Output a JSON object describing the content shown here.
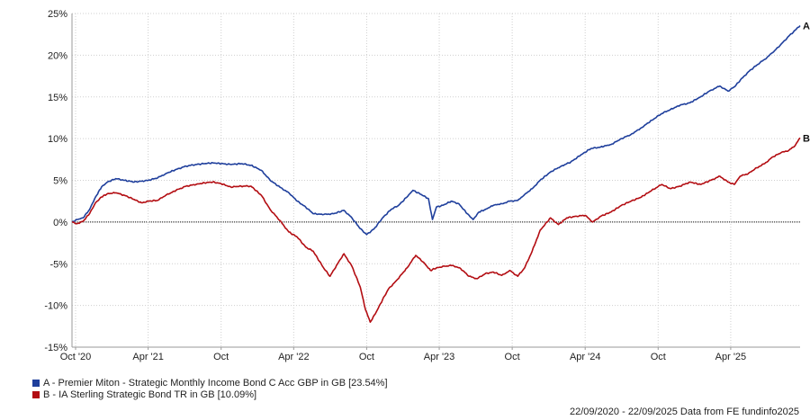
{
  "chart_data": {
    "type": "line",
    "y_unit": "%",
    "ylim": [
      -15,
      25
    ],
    "y_ticks": [
      25,
      20,
      15,
      10,
      5,
      0,
      -5,
      -10,
      -15
    ],
    "y_tick_labels": [
      "25%",
      "20%",
      "15%",
      "10%",
      "5%",
      "0%",
      "-5%",
      "-10%",
      "-15%"
    ],
    "x_range": [
      "2020-09-22",
      "2025-09-22"
    ],
    "x_ticks": [
      {
        "label": "Oct '20",
        "date": "2020-10-01"
      },
      {
        "label": "Apr '21",
        "date": "2021-04-01"
      },
      {
        "label": "Oct",
        "date": "2021-10-01"
      },
      {
        "label": "Apr '22",
        "date": "2022-04-01"
      },
      {
        "label": "Oct",
        "date": "2022-10-01"
      },
      {
        "label": "Apr '23",
        "date": "2023-04-01"
      },
      {
        "label": "Oct",
        "date": "2023-10-01"
      },
      {
        "label": "Apr '24",
        "date": "2024-04-01"
      },
      {
        "label": "Oct",
        "date": "2024-10-01"
      },
      {
        "label": "Apr '25",
        "date": "2025-04-01"
      }
    ],
    "grid": true,
    "zero_line": "dotted",
    "series": [
      {
        "name": "A - Premier Miton - Strategic Monthly Income Bond C Acc GBP in GB [23.54%]",
        "end_label": "A",
        "color": "#1f3f9c",
        "points": [
          [
            "2020-09-22",
            0.0
          ],
          [
            "2020-10-05",
            0.3
          ],
          [
            "2020-10-20",
            0.5
          ],
          [
            "2020-11-05",
            1.5
          ],
          [
            "2020-11-20",
            3.0
          ],
          [
            "2020-12-05",
            4.2
          ],
          [
            "2020-12-20",
            4.8
          ],
          [
            "2021-01-10",
            5.2
          ],
          [
            "2021-02-01",
            5.0
          ],
          [
            "2021-02-25",
            4.8
          ],
          [
            "2021-03-15",
            4.9
          ],
          [
            "2021-04-01",
            5.0
          ],
          [
            "2021-04-25",
            5.3
          ],
          [
            "2021-05-15",
            5.8
          ],
          [
            "2021-06-10",
            6.3
          ],
          [
            "2021-07-05",
            6.7
          ],
          [
            "2021-07-30",
            6.9
          ],
          [
            "2021-08-20",
            7.0
          ],
          [
            "2021-09-10",
            7.1
          ],
          [
            "2021-10-01",
            7.0
          ],
          [
            "2021-10-25",
            6.9
          ],
          [
            "2021-11-20",
            7.0
          ],
          [
            "2021-12-15",
            6.8
          ],
          [
            "2022-01-10",
            6.2
          ],
          [
            "2022-02-01",
            5.0
          ],
          [
            "2022-02-25",
            4.2
          ],
          [
            "2022-03-20",
            3.5
          ],
          [
            "2022-04-10",
            2.5
          ],
          [
            "2022-05-01",
            1.8
          ],
          [
            "2022-05-20",
            1.0
          ],
          [
            "2022-06-15",
            0.9
          ],
          [
            "2022-07-10",
            1.0
          ],
          [
            "2022-08-05",
            1.4
          ],
          [
            "2022-08-25",
            0.5
          ],
          [
            "2022-09-15",
            -0.8
          ],
          [
            "2022-10-01",
            -1.5
          ],
          [
            "2022-10-20",
            -0.8
          ],
          [
            "2022-11-10",
            0.5
          ],
          [
            "2022-12-01",
            1.5
          ],
          [
            "2022-12-20",
            2.0
          ],
          [
            "2023-01-10",
            3.0
          ],
          [
            "2023-01-25",
            3.8
          ],
          [
            "2023-02-15",
            3.3
          ],
          [
            "2023-03-05",
            2.8
          ],
          [
            "2023-03-15",
            0.3
          ],
          [
            "2023-03-25",
            1.8
          ],
          [
            "2023-04-10",
            2.0
          ],
          [
            "2023-05-01",
            2.5
          ],
          [
            "2023-05-20",
            2.2
          ],
          [
            "2023-06-10",
            1.0
          ],
          [
            "2023-06-25",
            0.3
          ],
          [
            "2023-07-10",
            1.2
          ],
          [
            "2023-07-25",
            1.5
          ],
          [
            "2023-08-15",
            2.0
          ],
          [
            "2023-09-05",
            2.2
          ],
          [
            "2023-09-25",
            2.5
          ],
          [
            "2023-10-15",
            2.6
          ],
          [
            "2023-11-01",
            3.3
          ],
          [
            "2023-11-20",
            4.0
          ],
          [
            "2023-12-10",
            5.0
          ],
          [
            "2024-01-05",
            6.0
          ],
          [
            "2024-02-01",
            6.7
          ],
          [
            "2024-02-25",
            7.2
          ],
          [
            "2024-03-20",
            8.0
          ],
          [
            "2024-04-15",
            8.8
          ],
          [
            "2024-05-10",
            9.0
          ],
          [
            "2024-06-05",
            9.3
          ],
          [
            "2024-07-01",
            10.0
          ],
          [
            "2024-07-25",
            10.5
          ],
          [
            "2024-08-20",
            11.3
          ],
          [
            "2024-09-15",
            12.2
          ],
          [
            "2024-10-10",
            13.0
          ],
          [
            "2024-11-01",
            13.5
          ],
          [
            "2024-11-25",
            14.0
          ],
          [
            "2024-12-20",
            14.3
          ],
          [
            "2025-01-15",
            15.0
          ],
          [
            "2025-02-10",
            15.8
          ],
          [
            "2025-03-05",
            16.3
          ],
          [
            "2025-03-25",
            15.7
          ],
          [
            "2025-04-10",
            16.2
          ],
          [
            "2025-04-25",
            17.0
          ],
          [
            "2025-05-15",
            18.0
          ],
          [
            "2025-06-05",
            18.8
          ],
          [
            "2025-06-25",
            19.5
          ],
          [
            "2025-07-15",
            20.3
          ],
          [
            "2025-08-05",
            21.3
          ],
          [
            "2025-08-25",
            22.3
          ],
          [
            "2025-09-10",
            23.0
          ],
          [
            "2025-09-22",
            23.54
          ]
        ]
      },
      {
        "name": "B - IA Sterling Strategic Bond TR in GB [10.09%]",
        "end_label": "B",
        "color": "#b30d12",
        "points": [
          [
            "2020-09-22",
            0.0
          ],
          [
            "2020-10-05",
            -0.2
          ],
          [
            "2020-10-20",
            0.1
          ],
          [
            "2020-11-05",
            1.0
          ],
          [
            "2020-11-20",
            2.3
          ],
          [
            "2020-12-05",
            3.0
          ],
          [
            "2020-12-20",
            3.4
          ],
          [
            "2021-01-10",
            3.5
          ],
          [
            "2021-02-01",
            3.2
          ],
          [
            "2021-02-25",
            2.7
          ],
          [
            "2021-03-15",
            2.3
          ],
          [
            "2021-04-01",
            2.5
          ],
          [
            "2021-04-25",
            2.6
          ],
          [
            "2021-05-15",
            3.2
          ],
          [
            "2021-06-10",
            3.8
          ],
          [
            "2021-07-05",
            4.3
          ],
          [
            "2021-07-30",
            4.5
          ],
          [
            "2021-08-20",
            4.7
          ],
          [
            "2021-09-10",
            4.8
          ],
          [
            "2021-10-01",
            4.6
          ],
          [
            "2021-10-25",
            4.2
          ],
          [
            "2021-11-20",
            4.3
          ],
          [
            "2021-12-15",
            4.3
          ],
          [
            "2022-01-10",
            3.2
          ],
          [
            "2022-02-01",
            1.5
          ],
          [
            "2022-02-25",
            0.2
          ],
          [
            "2022-03-20",
            -1.2
          ],
          [
            "2022-04-10",
            -1.8
          ],
          [
            "2022-05-01",
            -3.0
          ],
          [
            "2022-05-20",
            -3.5
          ],
          [
            "2022-06-15",
            -5.5
          ],
          [
            "2022-07-01",
            -6.5
          ],
          [
            "2022-07-20",
            -5.0
          ],
          [
            "2022-08-05",
            -3.8
          ],
          [
            "2022-08-25",
            -5.3
          ],
          [
            "2022-09-15",
            -7.8
          ],
          [
            "2022-09-28",
            -10.5
          ],
          [
            "2022-10-10",
            -12.0
          ],
          [
            "2022-10-25",
            -10.8
          ],
          [
            "2022-11-10",
            -9.3
          ],
          [
            "2022-11-25",
            -8.0
          ],
          [
            "2022-12-15",
            -7.0
          ],
          [
            "2023-01-10",
            -5.5
          ],
          [
            "2023-02-01",
            -4.0
          ],
          [
            "2023-02-20",
            -4.8
          ],
          [
            "2023-03-10",
            -5.8
          ],
          [
            "2023-03-25",
            -5.5
          ],
          [
            "2023-04-15",
            -5.3
          ],
          [
            "2023-05-05",
            -5.2
          ],
          [
            "2023-05-25",
            -5.6
          ],
          [
            "2023-06-15",
            -6.5
          ],
          [
            "2023-07-05",
            -6.8
          ],
          [
            "2023-07-25",
            -6.2
          ],
          [
            "2023-08-15",
            -6.0
          ],
          [
            "2023-09-05",
            -6.4
          ],
          [
            "2023-09-25",
            -5.8
          ],
          [
            "2023-10-15",
            -6.5
          ],
          [
            "2023-11-01",
            -5.5
          ],
          [
            "2023-11-20",
            -3.5
          ],
          [
            "2023-12-10",
            -1.0
          ],
          [
            "2024-01-05",
            0.5
          ],
          [
            "2024-01-25",
            -0.3
          ],
          [
            "2024-02-15",
            0.5
          ],
          [
            "2024-03-10",
            0.7
          ],
          [
            "2024-04-01",
            0.8
          ],
          [
            "2024-04-20",
            0.0
          ],
          [
            "2024-05-10",
            0.7
          ],
          [
            "2024-06-05",
            1.2
          ],
          [
            "2024-07-01",
            2.0
          ],
          [
            "2024-07-25",
            2.5
          ],
          [
            "2024-08-20",
            3.0
          ],
          [
            "2024-09-15",
            3.8
          ],
          [
            "2024-10-10",
            4.5
          ],
          [
            "2024-11-01",
            4.0
          ],
          [
            "2024-11-25",
            4.3
          ],
          [
            "2024-12-20",
            4.8
          ],
          [
            "2025-01-15",
            4.5
          ],
          [
            "2025-02-10",
            5.0
          ],
          [
            "2025-03-05",
            5.5
          ],
          [
            "2025-03-25",
            4.8
          ],
          [
            "2025-04-10",
            4.5
          ],
          [
            "2025-04-25",
            5.5
          ],
          [
            "2025-05-15",
            5.8
          ],
          [
            "2025-06-05",
            6.5
          ],
          [
            "2025-06-25",
            7.0
          ],
          [
            "2025-07-15",
            7.8
          ],
          [
            "2025-08-05",
            8.3
          ],
          [
            "2025-08-25",
            8.6
          ],
          [
            "2025-09-10",
            9.2
          ],
          [
            "2025-09-22",
            10.09
          ]
        ]
      }
    ]
  },
  "legend": [
    {
      "label": "A - Premier Miton - Strategic Monthly Income Bond C Acc GBP in GB [23.54%]",
      "color": "#1f3f9c"
    },
    {
      "label": "B - IA Sterling Strategic Bond TR in GB [10.09%]",
      "color": "#b30d12"
    }
  ],
  "footer": "22/09/2020 - 22/09/2025 Data from FE fundinfo2025"
}
